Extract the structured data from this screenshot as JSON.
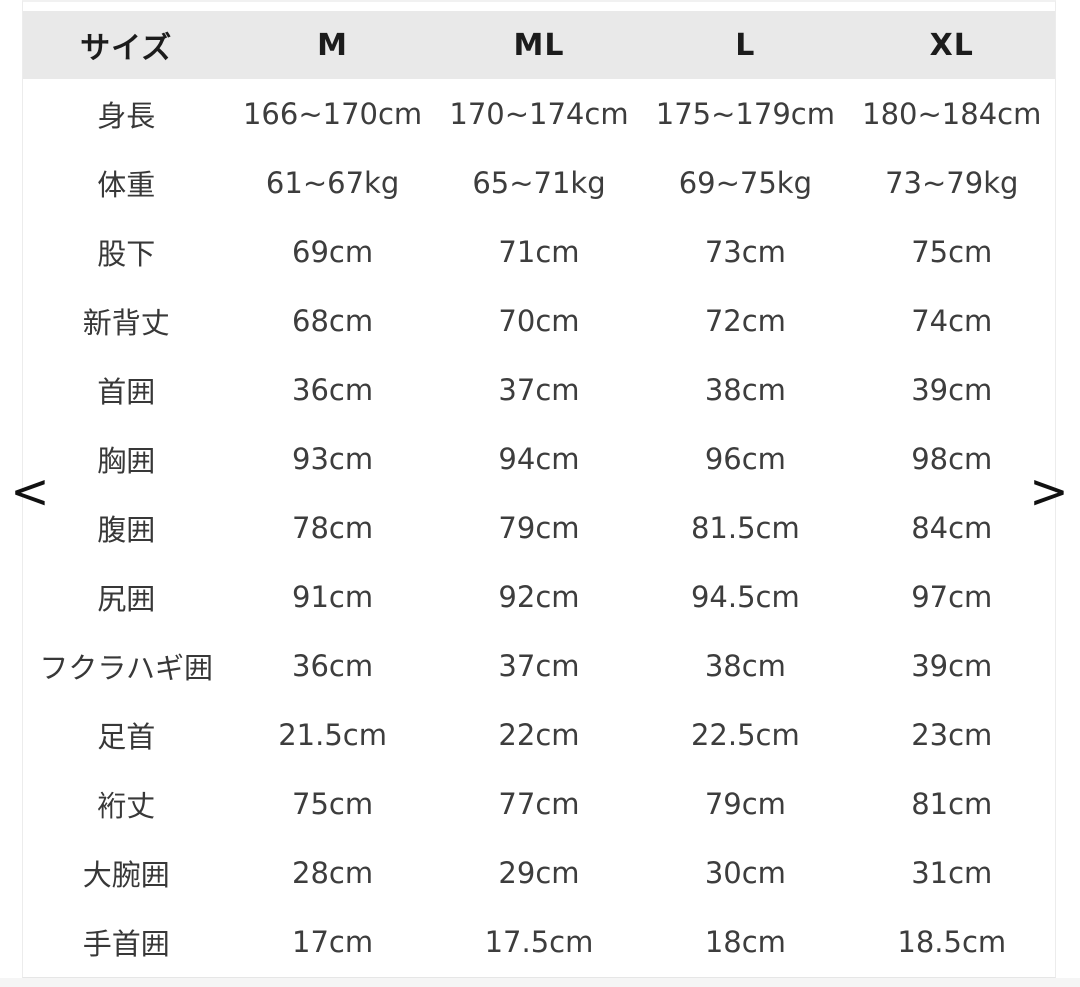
{
  "colors": {
    "page_bg": "#ffffff",
    "header_bg": "#e9e9e9",
    "header_text": "#1c1c1c",
    "body_text": "#3d3d3d",
    "border": "#ececec",
    "arrow": "#111111",
    "bottom_strip": "#f5f5f5"
  },
  "carousel": {
    "prev_label": "<",
    "next_label": ">"
  },
  "size_chart": {
    "columns": [
      "サイズ",
      "M",
      "ML",
      "L",
      "XL"
    ],
    "rows": [
      {
        "label": "身長",
        "values": [
          "166~170cm",
          "170~174cm",
          "175~179cm",
          "180~184cm"
        ]
      },
      {
        "label": "体重",
        "values": [
          "61~67kg",
          "65~71kg",
          "69~75kg",
          "73~79kg"
        ]
      },
      {
        "label": "股下",
        "values": [
          "69cm",
          "71cm",
          "73cm",
          "75cm"
        ]
      },
      {
        "label": "新背丈",
        "values": [
          "68cm",
          "70cm",
          "72cm",
          "74cm"
        ]
      },
      {
        "label": "首囲",
        "values": [
          "36cm",
          "37cm",
          "38cm",
          "39cm"
        ]
      },
      {
        "label": "胸囲",
        "values": [
          "93cm",
          "94cm",
          "96cm",
          "98cm"
        ]
      },
      {
        "label": "腹囲",
        "values": [
          "78cm",
          "79cm",
          "81.5cm",
          "84cm"
        ]
      },
      {
        "label": "尻囲",
        "values": [
          "91cm",
          "92cm",
          "94.5cm",
          "97cm"
        ]
      },
      {
        "label": "フクラハギ囲",
        "values": [
          "36cm",
          "37cm",
          "38cm",
          "39cm"
        ]
      },
      {
        "label": "足首",
        "values": [
          "21.5cm",
          "22cm",
          "22.5cm",
          "23cm"
        ]
      },
      {
        "label": "裄丈",
        "values": [
          "75cm",
          "77cm",
          "79cm",
          "81cm"
        ]
      },
      {
        "label": "大腕囲",
        "values": [
          "28cm",
          "29cm",
          "30cm",
          "31cm"
        ]
      },
      {
        "label": "手首囲",
        "values": [
          "17cm",
          "17.5cm",
          "18cm",
          "18.5cm"
        ]
      }
    ]
  },
  "chart_data": {
    "type": "table",
    "title": "サイズ表 (size chart)",
    "columns": [
      "サイズ",
      "M",
      "ML",
      "L",
      "XL"
    ],
    "rows": [
      [
        "身長",
        "166~170cm",
        "170~174cm",
        "175~179cm",
        "180~184cm"
      ],
      [
        "体重",
        "61~67kg",
        "65~71kg",
        "69~75kg",
        "73~79kg"
      ],
      [
        "股下",
        "69cm",
        "71cm",
        "73cm",
        "75cm"
      ],
      [
        "新背丈",
        "68cm",
        "70cm",
        "72cm",
        "74cm"
      ],
      [
        "首囲",
        "36cm",
        "37cm",
        "38cm",
        "39cm"
      ],
      [
        "胸囲",
        "93cm",
        "94cm",
        "96cm",
        "98cm"
      ],
      [
        "腹囲",
        "78cm",
        "79cm",
        "81.5cm",
        "84cm"
      ],
      [
        "尻囲",
        "91cm",
        "92cm",
        "94.5cm",
        "97cm"
      ],
      [
        "フクラハギ囲",
        "36cm",
        "37cm",
        "38cm",
        "39cm"
      ],
      [
        "足首",
        "21.5cm",
        "22cm",
        "22.5cm",
        "23cm"
      ],
      [
        "裄丈",
        "75cm",
        "77cm",
        "79cm",
        "81cm"
      ],
      [
        "大腕囲",
        "28cm",
        "29cm",
        "30cm",
        "31cm"
      ],
      [
        "手首囲",
        "17cm",
        "17.5cm",
        "18cm",
        "18.5cm"
      ]
    ]
  }
}
